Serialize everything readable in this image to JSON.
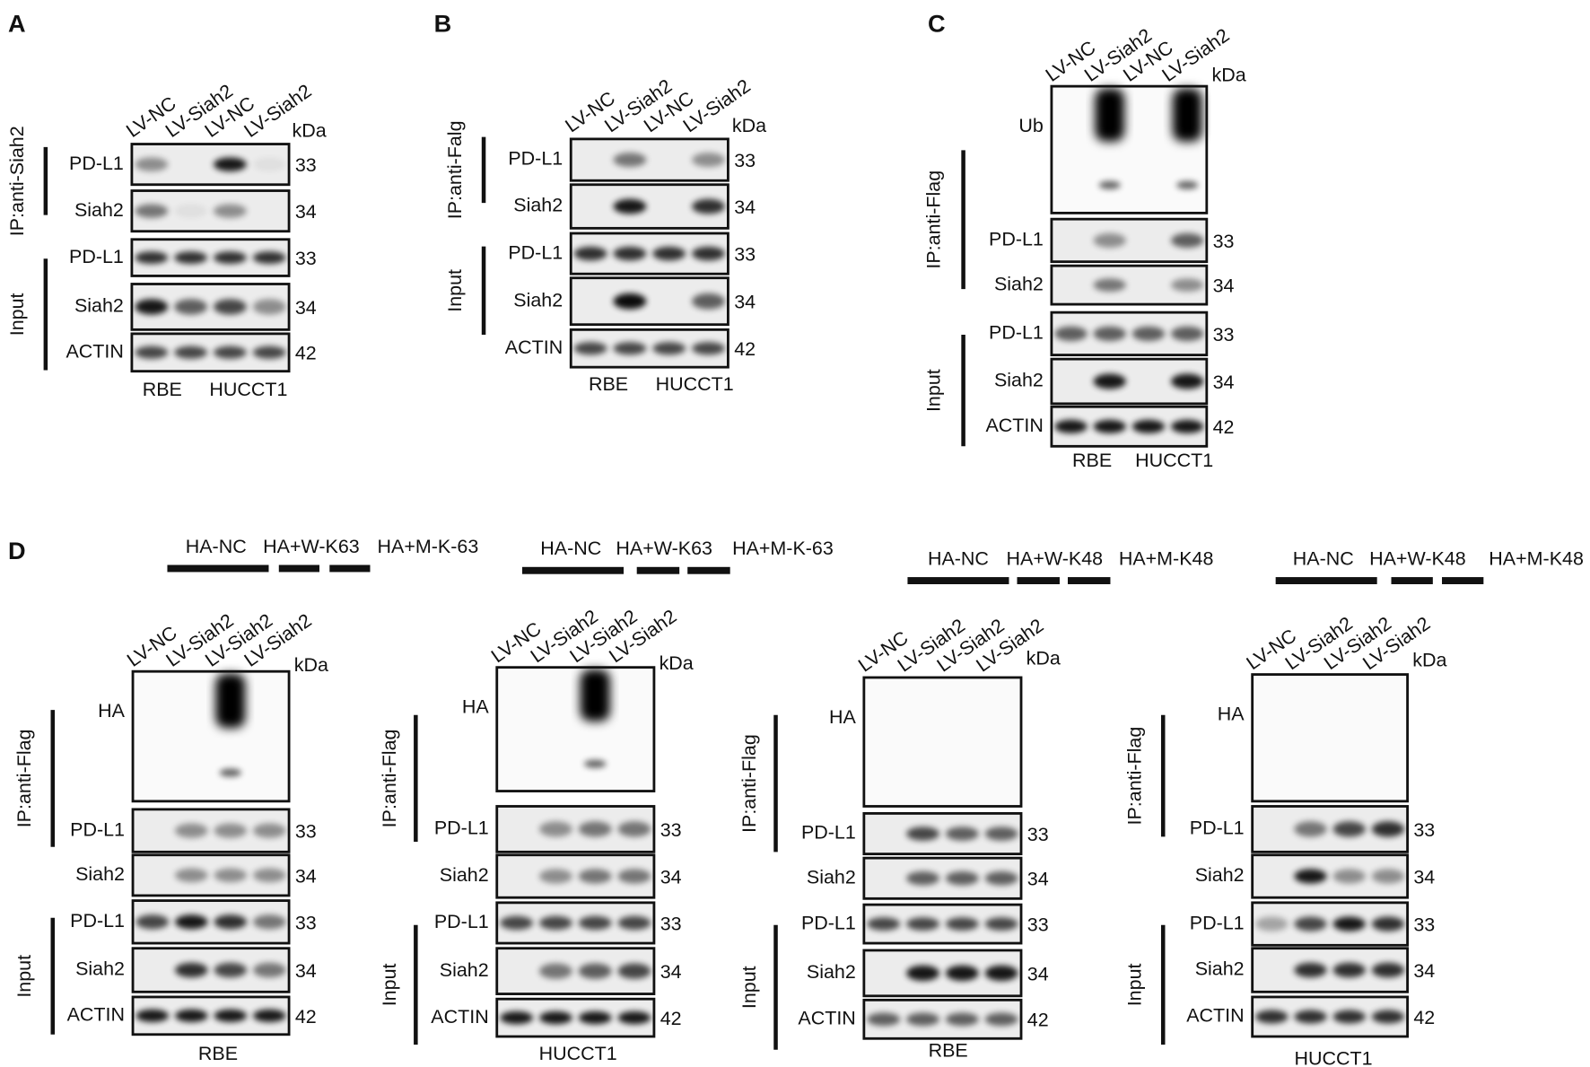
{
  "panels": [
    {
      "letter": "A",
      "lanes": [
        "LV-NC",
        "LV-Siah2",
        "LV-NC",
        "LV-Siah2"
      ],
      "kda_unit": "kDa",
      "groups": [
        {
          "label": "IP:anti-Siah2",
          "rows": [
            {
              "label": "PD-L1",
              "kda": 33
            },
            {
              "label": "Siah2",
              "kda": 34
            }
          ]
        },
        {
          "label": "Input",
          "rows": [
            {
              "label": "PD-L1",
              "kda": 33
            },
            {
              "label": "Siah2",
              "kda": 34
            },
            {
              "label": "ACTIN",
              "kda": 42
            }
          ]
        }
      ],
      "cells": [
        "RBE",
        "HUCCT1"
      ]
    },
    {
      "letter": "B",
      "lanes": [
        "LV-NC",
        "LV-Siah2",
        "LV-NC",
        "LV-Siah2"
      ],
      "kda_unit": "kDa",
      "groups": [
        {
          "label": "IP:anti-Falg",
          "rows": [
            {
              "label": "PD-L1",
              "kda": 33
            },
            {
              "label": "Siah2",
              "kda": 34
            }
          ]
        },
        {
          "label": "Input",
          "rows": [
            {
              "label": "PD-L1",
              "kda": 33
            },
            {
              "label": "Siah2",
              "kda": 34
            },
            {
              "label": "ACTIN",
              "kda": 42
            }
          ]
        }
      ],
      "cells": [
        "RBE",
        "HUCCT1"
      ]
    },
    {
      "letter": "C",
      "lanes": [
        "LV-NC",
        "LV-Siah2",
        "LV-NC",
        "LV-Siah2"
      ],
      "kda_unit": "kDa",
      "groups": [
        {
          "label": "IP:anti-Flag",
          "rows": [
            {
              "label": "Ub"
            },
            {
              "label": "PD-L1",
              "kda": 33
            },
            {
              "label": "Siah2",
              "kda": 34
            }
          ]
        },
        {
          "label": "Input",
          "rows": [
            {
              "label": "PD-L1",
              "kda": 33
            },
            {
              "label": "Siah2",
              "kda": 34
            },
            {
              "label": "ACTIN",
              "kda": 42
            }
          ]
        }
      ],
      "cells": [
        "RBE",
        "HUCCT1"
      ]
    },
    {
      "letter": "D",
      "treatments": [
        "HA-NC",
        "HA+W-K63",
        "HA+M-K-63"
      ],
      "lanes": [
        "LV-NC",
        "LV-Siah2",
        "LV-Siah2",
        "LV-Siah2"
      ],
      "kda_unit": "kDa",
      "groups": [
        {
          "label": "IP:anti-Flag",
          "rows": [
            {
              "label": "HA"
            },
            {
              "label": "PD-L1",
              "kda": 33
            },
            {
              "label": "Siah2",
              "kda": 34
            }
          ]
        },
        {
          "label": "Input",
          "rows": [
            {
              "label": "PD-L1",
              "kda": 33
            },
            {
              "label": "Siah2",
              "kda": 34
            },
            {
              "label": "ACTIN",
              "kda": 42
            }
          ]
        }
      ],
      "cells": [
        "RBE"
      ]
    },
    {
      "treatments": [
        "HA-NC",
        "HA+W-K63",
        "HA+M-K-63"
      ],
      "lanes": [
        "LV-NC",
        "LV-Siah2",
        "LV-Siah2",
        "LV-Siah2"
      ],
      "kda_unit": "kDa",
      "groups": [
        {
          "label": "IP:anti-Flag",
          "rows": [
            {
              "label": "HA"
            },
            {
              "label": "PD-L1",
              "kda": 33
            },
            {
              "label": "Siah2",
              "kda": 34
            }
          ]
        },
        {
          "label": "Input",
          "rows": [
            {
              "label": "PD-L1",
              "kda": 33
            },
            {
              "label": "Siah2",
              "kda": 34
            },
            {
              "label": "ACTIN",
              "kda": 42
            }
          ]
        }
      ],
      "cells": [
        "HUCCT1"
      ]
    },
    {
      "treatments": [
        "HA-NC",
        "HA+W-K48",
        "HA+M-K48"
      ],
      "lanes": [
        "LV-NC",
        "LV-Siah2",
        "LV-Siah2",
        "LV-Siah2"
      ],
      "kda_unit": "kDa",
      "groups": [
        {
          "label": "IP:anti-Flag",
          "rows": [
            {
              "label": "HA"
            },
            {
              "label": "PD-L1",
              "kda": 33
            },
            {
              "label": "Siah2",
              "kda": 34
            }
          ]
        },
        {
          "label": "Input",
          "rows": [
            {
              "label": "PD-L1",
              "kda": 33
            },
            {
              "label": "Siah2",
              "kda": 34
            },
            {
              "label": "ACTIN",
              "kda": 42
            }
          ]
        }
      ],
      "cells": [
        "RBE"
      ]
    },
    {
      "treatments": [
        "HA-NC",
        "HA+W-K48",
        "HA+M-K48"
      ],
      "lanes": [
        "LV-NC",
        "LV-Siah2",
        "LV-Siah2",
        "LV-Siah2"
      ],
      "kda_unit": "kDa",
      "groups": [
        {
          "label": "IP:anti-Flag",
          "rows": [
            {
              "label": "HA"
            },
            {
              "label": "PD-L1",
              "kda": 33
            },
            {
              "label": "Siah2",
              "kda": 34
            }
          ]
        },
        {
          "label": "Input",
          "rows": [
            {
              "label": "PD-L1",
              "kda": 33
            },
            {
              "label": "Siah2",
              "kda": 34
            },
            {
              "label": "ACTIN",
              "kda": 42
            }
          ]
        }
      ],
      "cells": [
        "HUCCT1"
      ]
    }
  ]
}
